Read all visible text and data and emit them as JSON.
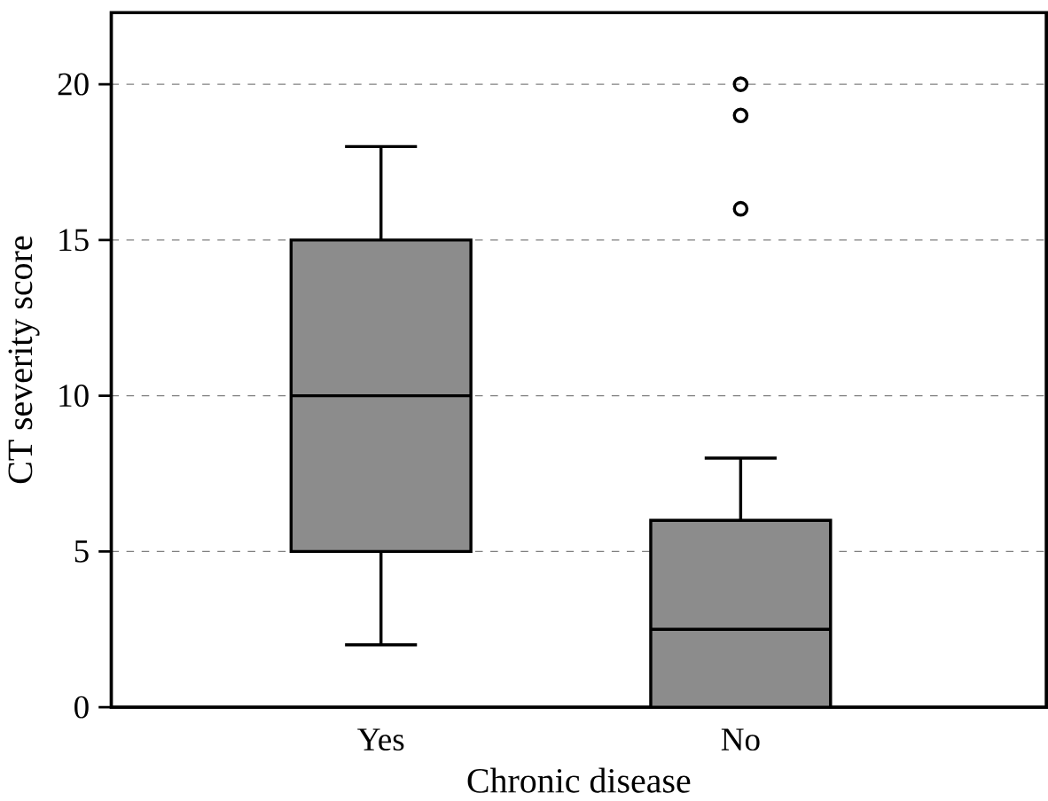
{
  "chart_data": {
    "type": "box",
    "xlabel": "Chronic disease",
    "ylabel": "CT severity score",
    "categories": [
      "Yes",
      "No"
    ],
    "boxes": [
      {
        "low": 2,
        "q1": 5,
        "median": 10,
        "q3": 15,
        "high": 18
      },
      {
        "low": 0,
        "q1": 0,
        "median": 2.5,
        "q3": 6,
        "high": 8,
        "outliers": [
          16,
          19,
          20
        ]
      }
    ],
    "color": "#8c8c8c",
    "ylim": [
      0,
      22.3
    ],
    "yticks": [
      0,
      5,
      10,
      15,
      20
    ],
    "grid": "y"
  }
}
